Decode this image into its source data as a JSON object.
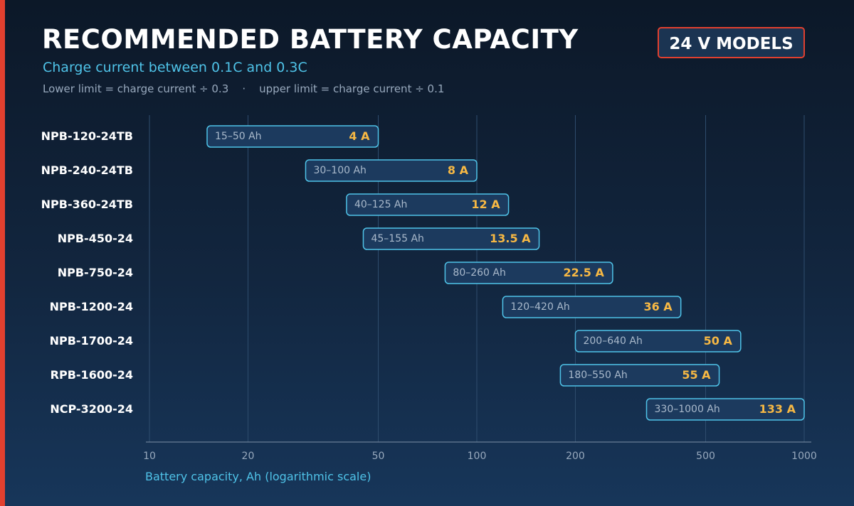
{
  "header": {
    "title": "RECOMMENDED BATTERY CAPACITY",
    "subtitle": "Charge current between 0.1C and 0.3C",
    "note": "Lower limit = charge current ÷ 0.3    ·    upper limit = charge current ÷ 0.1",
    "badge": "24 V MODELS"
  },
  "colors": {
    "accent": "#e2402f",
    "bar_fill": "#1c3a5e",
    "bar_border": "#4fc3e8",
    "current_text": "#f6b844",
    "range_text": "#a9b9cb",
    "axis_label": "#4fc3e8"
  },
  "chart_data": {
    "type": "bar",
    "orientation": "horizontal-range",
    "x_scale": "log",
    "xlim": [
      10,
      1000
    ],
    "x_ticks": [
      10,
      20,
      50,
      100,
      200,
      500,
      1000
    ],
    "xlabel": "Battery capacity, Ah  (logarithmic scale)",
    "grid": true,
    "series": [
      {
        "model": "NPB-120-24TB",
        "low": 15,
        "high": 50,
        "range_label": "15–50 Ah",
        "current": "4 A"
      },
      {
        "model": "NPB-240-24TB",
        "low": 30,
        "high": 100,
        "range_label": "30–100 Ah",
        "current": "8 A"
      },
      {
        "model": "NPB-360-24TB",
        "low": 40,
        "high": 125,
        "range_label": "40–125 Ah",
        "current": "12 A"
      },
      {
        "model": "NPB-450-24",
        "low": 45,
        "high": 155,
        "range_label": "45–155 Ah",
        "current": "13.5 A"
      },
      {
        "model": "NPB-750-24",
        "low": 80,
        "high": 260,
        "range_label": "80–260 Ah",
        "current": "22.5 A"
      },
      {
        "model": "NPB-1200-24",
        "low": 120,
        "high": 420,
        "range_label": "120–420 Ah",
        "current": "36 A"
      },
      {
        "model": "NPB-1700-24",
        "low": 200,
        "high": 640,
        "range_label": "200–640 Ah",
        "current": "50 A"
      },
      {
        "model": "RPB-1600-24",
        "low": 180,
        "high": 550,
        "range_label": "180–550 Ah",
        "current": "55 A"
      },
      {
        "model": "NCP-3200-24",
        "low": 330,
        "high": 1000,
        "range_label": "330–1000 Ah",
        "current": "133 A"
      }
    ]
  }
}
